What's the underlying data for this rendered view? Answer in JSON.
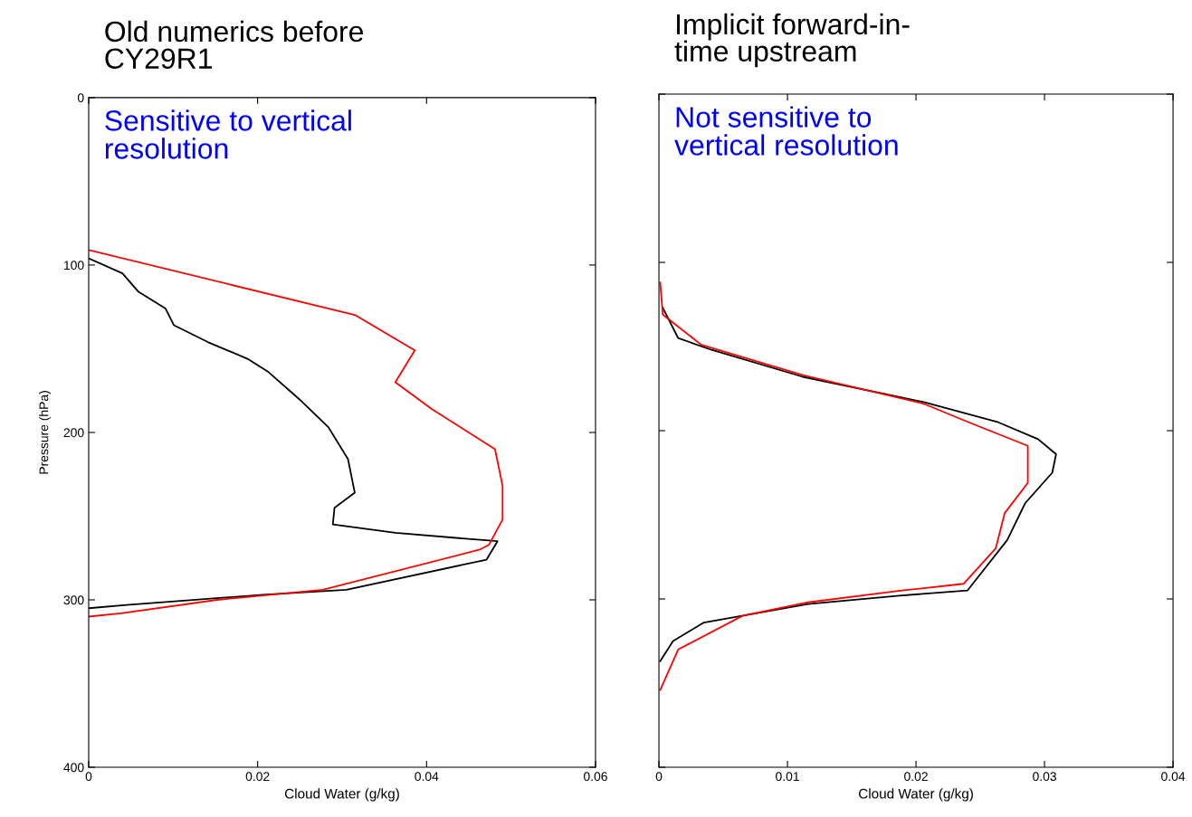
{
  "chart_data": [
    {
      "type": "line",
      "title": "Old numerics before\nCY29R1",
      "subtitle": "Sensitive to vertical\nresolution",
      "xlabel": "Cloud Water (g/kg)",
      "ylabel": "Pressure (hPa)",
      "xlim": [
        0,
        0.06
      ],
      "xticks": [
        0,
        0.02,
        0.04,
        0.06
      ],
      "ylim": [
        400,
        0
      ],
      "yticks": [
        0,
        100,
        200,
        300,
        400
      ],
      "series": [
        {
          "color": "#000000",
          "x": [
            0,
            0.004,
            0.0059,
            0.0091,
            0.0101,
            0.0141,
            0.0188,
            0.0213,
            0.0249,
            0.0284,
            0.0307,
            0.0315,
            0.0291,
            0.0289,
            0.0363,
            0.0484,
            0.0471,
            0.0305,
            0.0206,
            0.0045,
            0
          ],
          "values": [
            96,
            105,
            116,
            126,
            136,
            146,
            156,
            164,
            180,
            197,
            216,
            236,
            245,
            255,
            260,
            265,
            276,
            294,
            297,
            303,
            305
          ]
        },
        {
          "color": "#ff0000",
          "x": [
            0,
            0.0316,
            0.0386,
            0.0363,
            0.0406,
            0.0481,
            0.049,
            0.049,
            0.0474,
            0.0463,
            0.0277,
            0.0152,
            0.0038,
            0
          ],
          "values": [
            91,
            130,
            151,
            170,
            186,
            210,
            232,
            252,
            267,
            270,
            294,
            300,
            308,
            310
          ]
        }
      ]
    },
    {
      "type": "line",
      "title": "Implicit forward-in-\ntime upstream",
      "subtitle": "Not sensitive to\nvertical resolution",
      "xlabel": "Cloud Water (g/kg)",
      "xlim": [
        0,
        0.04
      ],
      "xticks": [
        0,
        0.01,
        0.02,
        0.03,
        0.04
      ],
      "ylim": [
        400,
        0
      ],
      "yticks": [
        {
          "value": 0,
          "label": null
        },
        {
          "value": 100,
          "label": null
        },
        {
          "value": 200,
          "label": null
        },
        {
          "value": 300,
          "label": null
        },
        {
          "value": 400,
          "label": null
        }
      ],
      "tick_labels": "x",
      "series": [
        {
          "color": "#000000",
          "x": [
            0.0003,
            0.0015,
            0.0041,
            0.0112,
            0.0206,
            0.0264,
            0.0295,
            0.0309,
            0.0306,
            0.0285,
            0.0271,
            0.024,
            0.0187,
            0.0116,
            0.0035,
            0.0011,
            0.0001
          ],
          "values": [
            127,
            145,
            152,
            168,
            183,
            195,
            205,
            214,
            225,
            243,
            265,
            295,
            298,
            303,
            314,
            325,
            337
          ]
        },
        {
          "color": "#ff0000",
          "x": [
            0.0001,
            0.0003,
            0.0033,
            0.0112,
            0.0206,
            0.0241,
            0.0287,
            0.0287,
            0.0269,
            0.0262,
            0.0237,
            0.0189,
            0.0116,
            0.0065,
            0.0015,
            0.0001
          ],
          "values": [
            112,
            131,
            149,
            167,
            184,
            195,
            209,
            231,
            249,
            270,
            291,
            295,
            302,
            310,
            330,
            354
          ]
        }
      ]
    }
  ]
}
